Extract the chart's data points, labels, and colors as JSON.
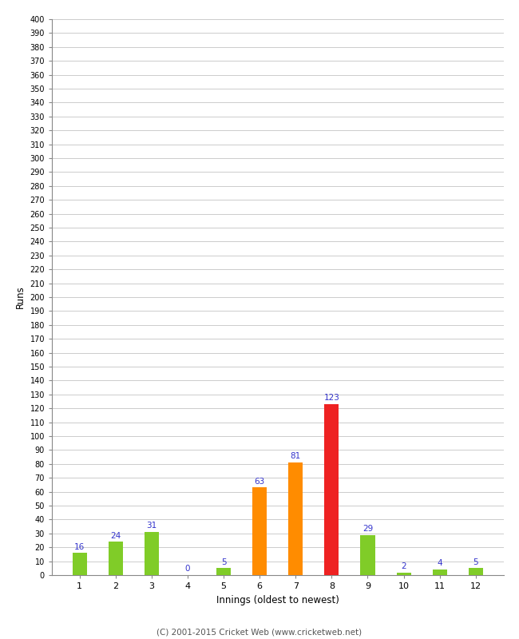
{
  "xlabel": "Innings (oldest to newest)",
  "ylabel": "Runs",
  "categories": [
    "1",
    "2",
    "3",
    "4",
    "5",
    "6",
    "7",
    "8",
    "9",
    "10",
    "11",
    "12"
  ],
  "values": [
    16,
    24,
    31,
    0,
    5,
    63,
    81,
    123,
    29,
    2,
    4,
    5
  ],
  "bar_colors": [
    "#80cc28",
    "#80cc28",
    "#80cc28",
    "#80cc28",
    "#80cc28",
    "#ff8c00",
    "#ff8c00",
    "#ee2222",
    "#80cc28",
    "#80cc28",
    "#80cc28",
    "#80cc28"
  ],
  "label_color": "#3333cc",
  "ylim": [
    0,
    400
  ],
  "background_color": "#ffffff",
  "grid_color": "#cccccc",
  "footer": "(C) 2001-2015 Cricket Web (www.cricketweb.net)",
  "bar_width": 0.4
}
